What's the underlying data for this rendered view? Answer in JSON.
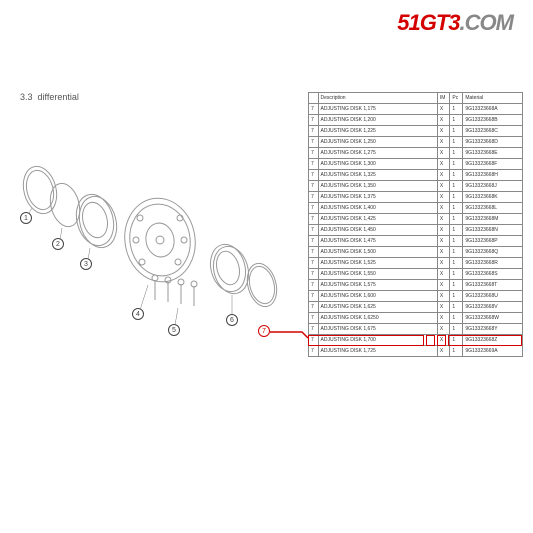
{
  "logo": {
    "part1": "51GT3",
    "part2": ".COM"
  },
  "section": {
    "number": "3.3",
    "title": "differential"
  },
  "table": {
    "headers": {
      "num": "",
      "desc": "Description",
      "im": "IM",
      "pc": "Pc",
      "mat": "Material"
    },
    "rows": [
      {
        "n": "7",
        "d": "ADJUSTING DISK 1,175",
        "im": "X",
        "pc": "1",
        "m": "9G13323668A"
      },
      {
        "n": "7",
        "d": "ADJUSTING DISK 1,200",
        "im": "X",
        "pc": "1",
        "m": "9G13323668B"
      },
      {
        "n": "7",
        "d": "ADJUSTING DISK 1,225",
        "im": "X",
        "pc": "1",
        "m": "9G13323668C"
      },
      {
        "n": "7",
        "d": "ADJUSTING DISK 1,250",
        "im": "X",
        "pc": "1",
        "m": "9G13323668D"
      },
      {
        "n": "7",
        "d": "ADJUSTING DISK 1,275",
        "im": "X",
        "pc": "1",
        "m": "9G13323668E"
      },
      {
        "n": "7",
        "d": "ADJUSTING DISK 1,300",
        "im": "X",
        "pc": "1",
        "m": "9G13323668F"
      },
      {
        "n": "7",
        "d": "ADJUSTING DISK 1,325",
        "im": "X",
        "pc": "1",
        "m": "9G13323668H"
      },
      {
        "n": "7",
        "d": "ADJUSTING DISK 1,350",
        "im": "X",
        "pc": "1",
        "m": "9G13323668J"
      },
      {
        "n": "7",
        "d": "ADJUSTING DISK 1,375",
        "im": "X",
        "pc": "1",
        "m": "9G13323668K"
      },
      {
        "n": "7",
        "d": "ADJUSTING DISK 1,400",
        "im": "X",
        "pc": "1",
        "m": "9G13323668L"
      },
      {
        "n": "7",
        "d": "ADJUSTING DISK 1,425",
        "im": "X",
        "pc": "1",
        "m": "9G13323668M"
      },
      {
        "n": "7",
        "d": "ADJUSTING DISK 1,450",
        "im": "X",
        "pc": "1",
        "m": "9G13323668N"
      },
      {
        "n": "7",
        "d": "ADJUSTING DISK 1,475",
        "im": "X",
        "pc": "1",
        "m": "9G13323668P"
      },
      {
        "n": "7",
        "d": "ADJUSTING DISK 1,500",
        "im": "X",
        "pc": "1",
        "m": "9G13323668Q"
      },
      {
        "n": "7",
        "d": "ADJUSTING DISK 1,525",
        "im": "X",
        "pc": "1",
        "m": "9G13323668R"
      },
      {
        "n": "7",
        "d": "ADJUSTING DISK 1,550",
        "im": "X",
        "pc": "1",
        "m": "9G13323668S"
      },
      {
        "n": "7",
        "d": "ADJUSTING DISK 1,575",
        "im": "X",
        "pc": "1",
        "m": "9G13323668T"
      },
      {
        "n": "7",
        "d": "ADJUSTING DISK 1,600",
        "im": "X",
        "pc": "1",
        "m": "9G13323668U"
      },
      {
        "n": "7",
        "d": "ADJUSTING DISK 1,625",
        "im": "X",
        "pc": "1",
        "m": "9G13323668V"
      },
      {
        "n": "7",
        "d": "ADJUSTING DISK 1,6250",
        "im": "X",
        "pc": "1",
        "m": "9G13323668W"
      },
      {
        "n": "7",
        "d": "ADJUSTING DISK 1,675",
        "im": "X",
        "pc": "1",
        "m": "9G13323668Y"
      },
      {
        "n": "7",
        "d": "ADJUSTING DISK 1,700",
        "im": "X",
        "pc": "1",
        "m": "9G13323668Z",
        "highlight": true
      },
      {
        "n": "7",
        "d": "ADJUSTING DISK 1,725",
        "im": "X",
        "pc": "1",
        "m": "9G13323669A"
      }
    ]
  },
  "callouts": [
    "1",
    "2",
    "3",
    "4",
    "5",
    "6",
    "7"
  ],
  "colors": {
    "red": "#d40000",
    "gray": "#888",
    "line": "#999"
  }
}
